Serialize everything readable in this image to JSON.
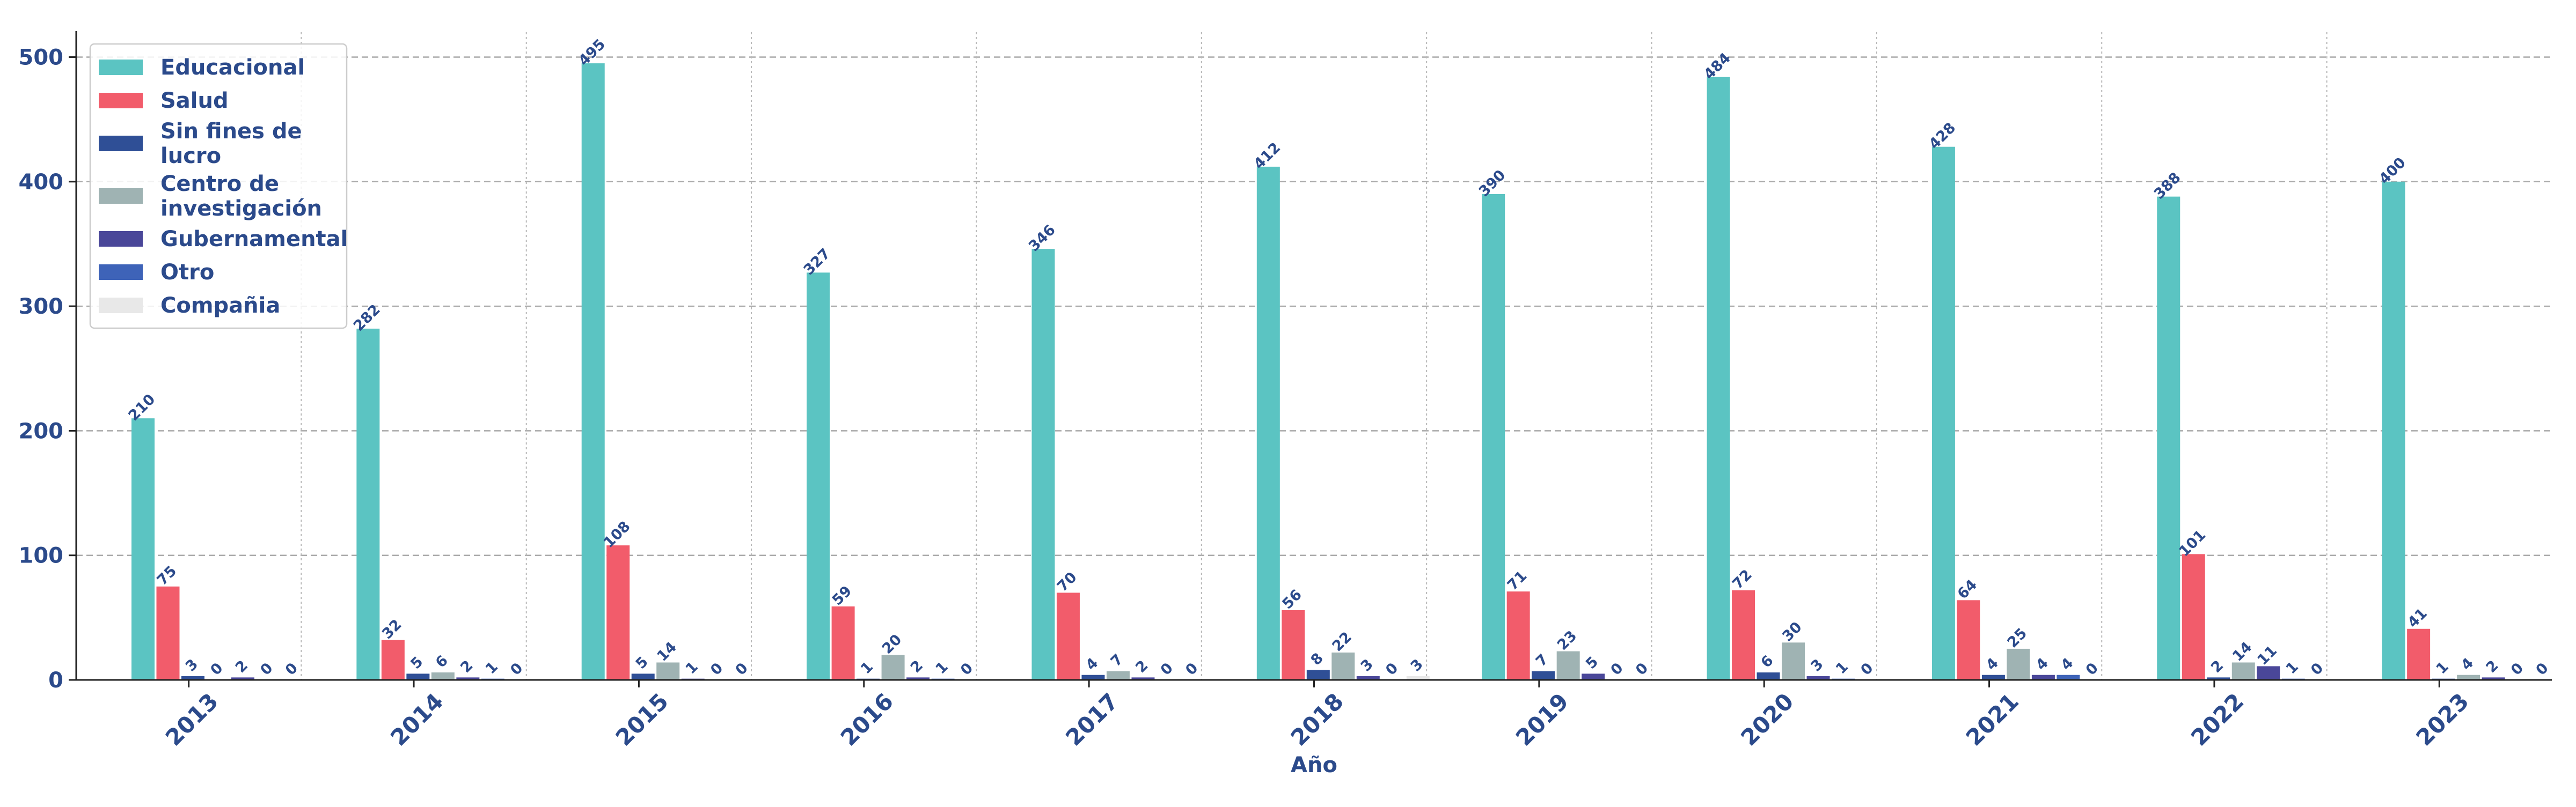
{
  "chart_data": {
    "type": "bar",
    "title": "",
    "xlabel": "Año",
    "ylabel": "",
    "ylim": [
      0,
      520
    ],
    "yticks": [
      0,
      100,
      200,
      300,
      400,
      500
    ],
    "grid": true,
    "legend_position": "top-left",
    "categories": [
      "2013",
      "2014",
      "2015",
      "2016",
      "2017",
      "2018",
      "2019",
      "2020",
      "2021",
      "2022",
      "2023"
    ],
    "series": [
      {
        "name": "Educacional",
        "legend_lines": [
          "Educacional"
        ],
        "color": "#5bc4c2",
        "values": [
          210,
          282,
          495,
          327,
          346,
          412,
          390,
          484,
          428,
          388,
          400
        ]
      },
      {
        "name": "Salud",
        "legend_lines": [
          "Salud"
        ],
        "color": "#f25c6b",
        "values": [
          75,
          32,
          108,
          59,
          70,
          56,
          71,
          72,
          64,
          101,
          41
        ]
      },
      {
        "name": "Sin fines de lucro",
        "legend_lines": [
          "Sin fines de",
          "lucro"
        ],
        "color": "#2f4f96",
        "values": [
          3,
          5,
          5,
          1,
          4,
          8,
          7,
          6,
          4,
          2,
          1
        ]
      },
      {
        "name": "Centro de investigación",
        "legend_lines": [
          "Centro de",
          "investigación"
        ],
        "color": "#9fb3b3",
        "values": [
          0,
          6,
          14,
          20,
          7,
          22,
          23,
          30,
          25,
          14,
          4
        ]
      },
      {
        "name": "Gubernamental",
        "legend_lines": [
          "Gubernamental"
        ],
        "color": "#4a4799",
        "values": [
          2,
          2,
          1,
          2,
          2,
          3,
          5,
          3,
          4,
          11,
          2
        ]
      },
      {
        "name": "Otro",
        "legend_lines": [
          "Otro"
        ],
        "color": "#3e63b8",
        "values": [
          0,
          1,
          0,
          1,
          0,
          0,
          0,
          1,
          4,
          1,
          0
        ]
      },
      {
        "name": "Compañia",
        "legend_lines": [
          "Compañia"
        ],
        "color": "#e8e8e8",
        "values": [
          0,
          0,
          0,
          0,
          0,
          3,
          0,
          0,
          0,
          0,
          0
        ]
      }
    ]
  }
}
